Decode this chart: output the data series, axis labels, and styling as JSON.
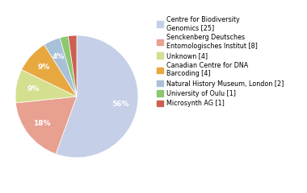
{
  "labels": [
    "Centre for Biodiversity\nGenomics [25]",
    "Senckenberg Deutsches\nEntomologisches Institut [8]",
    "Unknown [4]",
    "Canadian Centre for DNA\nBarcoding [4]",
    "Natural History Museum, London [2]",
    "University of Oulu [1]",
    "Microsynth AG [1]"
  ],
  "values": [
    25,
    8,
    4,
    4,
    2,
    1,
    1
  ],
  "colors": [
    "#c5cfe8",
    "#e8a090",
    "#d4e090",
    "#e8a840",
    "#a8c0d8",
    "#8cc870",
    "#cc6050"
  ],
  "figsize": [
    3.8,
    2.4
  ],
  "dpi": 100,
  "pct_threshold": 4
}
